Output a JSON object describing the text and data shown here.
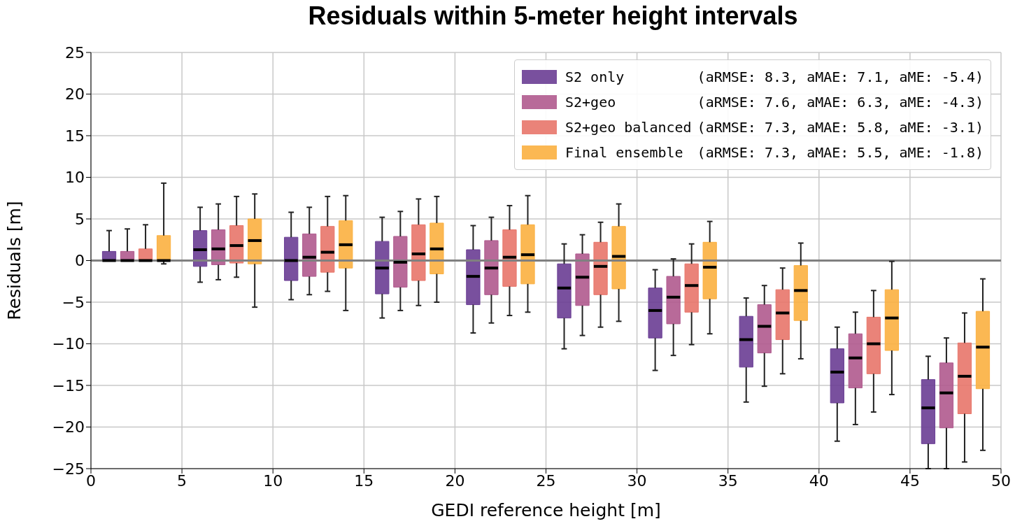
{
  "chart_data": {
    "type": "box",
    "title": "Residuals within 5-meter height intervals",
    "xlabel": "GEDI reference height [m]",
    "ylabel": "Residuals [m]",
    "xlim": [
      0,
      50
    ],
    "xticks": [
      0,
      5,
      10,
      15,
      20,
      25,
      30,
      35,
      40,
      45,
      50
    ],
    "ylim": [
      -25,
      25
    ],
    "yticks": [
      -25,
      -20,
      -15,
      -10,
      -5,
      0,
      5,
      10,
      15,
      20,
      25
    ],
    "grid": true,
    "legend": "top right",
    "ref_lines": [
      {
        "axis": "y",
        "value": 0,
        "color": "#808080"
      }
    ],
    "annotations": [
      "(aRMSE: 8.3, aMAE: 7.1, aME: -5.4)",
      "(aRMSE: 7.6, aMAE: 6.3, aME: -4.3)",
      "(aRMSE: 7.3, aMAE: 5.8, aME: -3.1)",
      "(aRMSE: 7.3, aMAE: 5.5, aME: -1.8)"
    ],
    "series": [
      {
        "name": "S2 only",
        "color": "#6a3d94",
        "x": [
          1,
          6,
          11,
          16,
          21,
          26,
          31,
          36,
          41,
          46
        ],
        "boxes": [
          {
            "low": 0,
            "q1": 0,
            "median": 0,
            "q3": 1.1,
            "high": 3.6
          },
          {
            "low": -2.6,
            "q1": -0.7,
            "median": 1.3,
            "q3": 3.6,
            "high": 6.4
          },
          {
            "low": -4.7,
            "q1": -2.4,
            "median": 0,
            "q3": 2.8,
            "high": 5.8
          },
          {
            "low": -6.9,
            "q1": -4,
            "median": -0.9,
            "q3": 2.3,
            "high": 5.2
          },
          {
            "low": -8.7,
            "q1": -5.3,
            "median": -1.9,
            "q3": 1.3,
            "high": 4.2
          },
          {
            "low": -10.6,
            "q1": -6.9,
            "median": -3.3,
            "q3": -0.4,
            "high": 2
          },
          {
            "low": -13.2,
            "q1": -9.3,
            "median": -6,
            "q3": -3.3,
            "high": -1.1
          },
          {
            "low": -17,
            "q1": -12.8,
            "median": -9.5,
            "q3": -6.7,
            "high": -4.5
          },
          {
            "low": -21.7,
            "q1": -17.1,
            "median": -13.4,
            "q3": -10.6,
            "high": -8
          },
          {
            "low": -25,
            "q1": -22,
            "median": -17.7,
            "q3": -14.3,
            "high": -11.5
          }
        ]
      },
      {
        "name": "S2+geo",
        "color": "#b05a8e",
        "x": [
          2,
          7,
          12,
          17,
          22,
          27,
          32,
          37,
          42,
          47
        ],
        "boxes": [
          {
            "low": 0,
            "q1": 0,
            "median": 0,
            "q3": 1.1,
            "high": 3.8
          },
          {
            "low": -2.3,
            "q1": -0.5,
            "median": 1.4,
            "q3": 3.7,
            "high": 6.8
          },
          {
            "low": -4.1,
            "q1": -1.9,
            "median": 0.4,
            "q3": 3.2,
            "high": 6.4
          },
          {
            "low": -6,
            "q1": -3.2,
            "median": -0.2,
            "q3": 2.9,
            "high": 5.9
          },
          {
            "low": -7.5,
            "q1": -4.1,
            "median": -0.9,
            "q3": 2.4,
            "high": 5.2
          },
          {
            "low": -9,
            "q1": -5.4,
            "median": -2,
            "q3": 0.8,
            "high": 3.1
          },
          {
            "low": -11.4,
            "q1": -7.6,
            "median": -4.4,
            "q3": -1.9,
            "high": 0.2
          },
          {
            "low": -15.1,
            "q1": -11.1,
            "median": -7.9,
            "q3": -5.3,
            "high": -3
          },
          {
            "low": -19.7,
            "q1": -15.3,
            "median": -11.7,
            "q3": -8.8,
            "high": -6.2
          },
          {
            "low": -25,
            "q1": -20.1,
            "median": -15.9,
            "q3": -12.3,
            "high": -9.3
          }
        ]
      },
      {
        "name": "S2+geo balanced",
        "color": "#e8766a",
        "x": [
          3,
          8,
          13,
          18,
          23,
          28,
          33,
          38,
          43,
          48
        ],
        "boxes": [
          {
            "low": 0,
            "q1": 0,
            "median": 0,
            "q3": 1.4,
            "high": 4.3
          },
          {
            "low": -2,
            "q1": -0.3,
            "median": 1.8,
            "q3": 4.2,
            "high": 7.7
          },
          {
            "low": -3.7,
            "q1": -1.4,
            "median": 1,
            "q3": 4.1,
            "high": 7.7
          },
          {
            "low": -5.4,
            "q1": -2.4,
            "median": 0.8,
            "q3": 4.3,
            "high": 7.4
          },
          {
            "low": -6.6,
            "q1": -3.1,
            "median": 0.4,
            "q3": 3.7,
            "high": 6.6
          },
          {
            "low": -8,
            "q1": -4.1,
            "median": -0.7,
            "q3": 2.2,
            "high": 4.6
          },
          {
            "low": -10.1,
            "q1": -6.2,
            "median": -3,
            "q3": -0.4,
            "high": 2
          },
          {
            "low": -13.6,
            "q1": -9.5,
            "median": -6.3,
            "q3": -3.5,
            "high": -0.9
          },
          {
            "low": -18.2,
            "q1": -13.6,
            "median": -10,
            "q3": -6.8,
            "high": -3.6
          },
          {
            "low": -24.2,
            "q1": -18.4,
            "median": -13.9,
            "q3": -9.9,
            "high": -6.3
          }
        ]
      },
      {
        "name": "Final ensemble",
        "color": "#fbb040",
        "x": [
          4,
          9,
          14,
          19,
          24,
          29,
          34,
          39,
          44,
          49
        ],
        "boxes": [
          {
            "low": -0.4,
            "q1": 0,
            "median": 0,
            "q3": 3,
            "high": 9.3
          },
          {
            "low": -5.6,
            "q1": -0.4,
            "median": 2.4,
            "q3": 5,
            "high": 8
          },
          {
            "low": -6,
            "q1": -0.9,
            "median": 1.9,
            "q3": 4.8,
            "high": 7.8
          },
          {
            "low": -5,
            "q1": -1.6,
            "median": 1.4,
            "q3": 4.5,
            "high": 7.7
          },
          {
            "low": -6.2,
            "q1": -2.8,
            "median": 0.7,
            "q3": 4.3,
            "high": 7.8
          },
          {
            "low": -7.3,
            "q1": -3.4,
            "median": 0.5,
            "q3": 4.1,
            "high": 6.8
          },
          {
            "low": -8.8,
            "q1": -4.6,
            "median": -0.8,
            "q3": 2.2,
            "high": 4.7
          },
          {
            "low": -11.8,
            "q1": -7.2,
            "median": -3.6,
            "q3": -0.6,
            "high": 2.1
          },
          {
            "low": -16.1,
            "q1": -10.8,
            "median": -6.9,
            "q3": -3.5,
            "high": -0.1
          },
          {
            "low": -22.8,
            "q1": -15.4,
            "median": -10.4,
            "q3": -6.1,
            "high": -2.2
          }
        ]
      }
    ]
  }
}
